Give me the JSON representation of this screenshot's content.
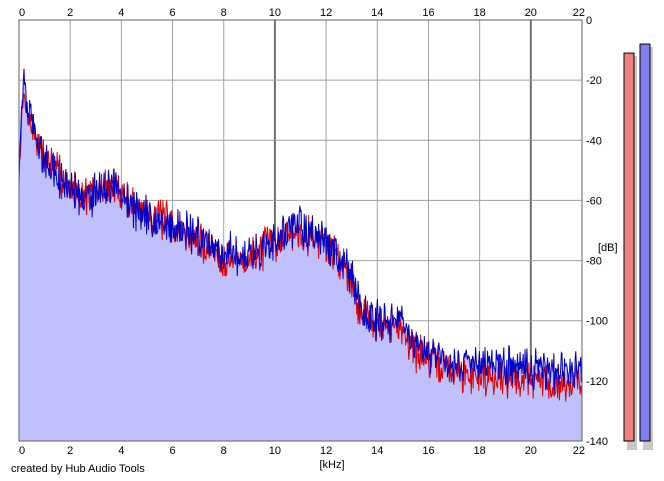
{
  "chart_data": {
    "type": "line",
    "xlabel": "[kHz]",
    "ylabel": "[dB]",
    "xlim": [
      0,
      22
    ],
    "ylim": [
      -140,
      0
    ],
    "x_ticks": [
      0,
      2,
      4,
      6,
      8,
      10,
      12,
      14,
      16,
      18,
      20,
      22
    ],
    "y_ticks": [
      0,
      -20,
      -40,
      -60,
      -80,
      -100,
      -120,
      -140
    ],
    "grid": true,
    "series": [
      {
        "color": "#e00000",
        "x": [
          0,
          0.1,
          0.2,
          0.3,
          0.5,
          0.8,
          1,
          1.5,
          2,
          2.5,
          3,
          3.5,
          4,
          4.5,
          5,
          5.5,
          6,
          6.5,
          7,
          7.5,
          8,
          8.5,
          9,
          9.5,
          10,
          10.5,
          11,
          11.5,
          12,
          12.5,
          13,
          13.2,
          13.5,
          14,
          14.5,
          15,
          15.2,
          15.5,
          16,
          17,
          18,
          19,
          20,
          21,
          22
        ],
        "y": [
          -55,
          -32,
          -26,
          -30,
          -36,
          -42,
          -45,
          -50,
          -56,
          -58,
          -58,
          -55,
          -57,
          -62,
          -64,
          -66,
          -68,
          -71,
          -74,
          -76,
          -79,
          -80,
          -80,
          -76,
          -74,
          -71,
          -70,
          -72,
          -75,
          -79,
          -86,
          -94,
          -98,
          -101,
          -103,
          -102,
          -106,
          -110,
          -113,
          -117,
          -118,
          -119,
          -119,
          -121,
          -120
        ]
      },
      {
        "color": "#0000c8",
        "x": [
          0,
          0.1,
          0.2,
          0.3,
          0.5,
          0.8,
          1,
          1.5,
          2,
          2.5,
          3,
          3.5,
          4,
          4.5,
          5,
          5.5,
          6,
          6.5,
          7,
          7.5,
          8,
          8.5,
          9,
          9.5,
          10,
          10.5,
          11,
          11.5,
          12,
          12.5,
          13,
          13.2,
          13.5,
          14,
          14.5,
          15,
          15.2,
          15.5,
          16,
          17,
          18,
          19,
          20,
          21,
          22
        ],
        "y": [
          -52,
          -30,
          -18,
          -28,
          -34,
          -43,
          -47,
          -52,
          -58,
          -59,
          -58,
          -56,
          -58,
          -63,
          -65,
          -67,
          -69,
          -70,
          -72,
          -74,
          -77,
          -78,
          -78,
          -75,
          -73,
          -70,
          -69,
          -71,
          -74,
          -78,
          -85,
          -93,
          -97,
          -100,
          -102,
          -101,
          -105,
          -108,
          -111,
          -115,
          -114,
          -115,
          -116,
          -116,
          -116
        ]
      }
    ],
    "meters": [
      {
        "color": "#f08080",
        "level_db": -11
      },
      {
        "color": "#8080f0",
        "level_db": -8
      }
    ]
  },
  "footer": {
    "credit": "created by Hub Audio Tools"
  }
}
